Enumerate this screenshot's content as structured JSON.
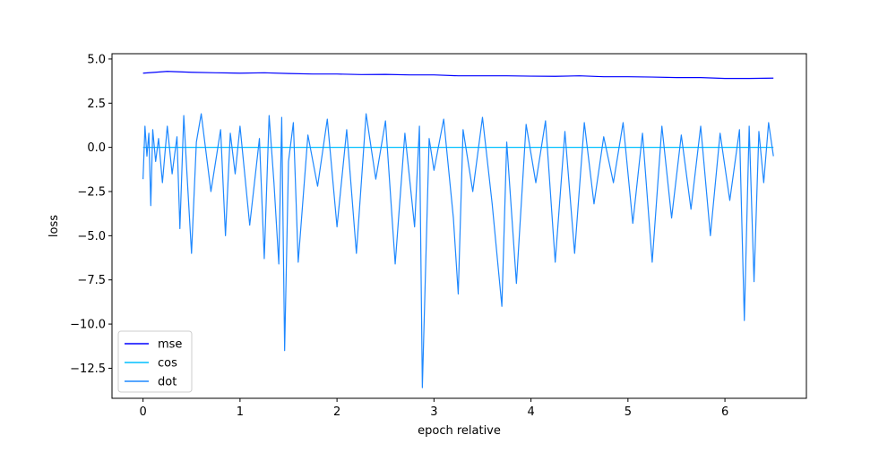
{
  "chart_data": {
    "type": "line",
    "title": "",
    "xlabel": "epoch relative",
    "ylabel": "loss",
    "xlim": [
      -0.32,
      6.84
    ],
    "ylim": [
      -14.2,
      5.3
    ],
    "xticks": [
      0,
      1,
      2,
      3,
      4,
      5,
      6
    ],
    "yticks": [
      5.0,
      2.5,
      0.0,
      -2.5,
      -5.0,
      -7.5,
      -10.0,
      -12.5
    ],
    "ytick_labels": [
      "5.0",
      "2.5",
      "0.0",
      "−2.5",
      "−5.0",
      "−7.5",
      "−10.0",
      "−12.5"
    ],
    "grid": false,
    "legend_position": "lower-left",
    "series": [
      {
        "name": "mse",
        "color": "#0000ff",
        "x": [
          0.0,
          0.25,
          0.5,
          0.75,
          1.0,
          1.25,
          1.5,
          1.75,
          2.0,
          2.25,
          2.5,
          2.75,
          3.0,
          3.25,
          3.5,
          3.75,
          4.0,
          4.25,
          4.5,
          4.75,
          5.0,
          5.25,
          5.5,
          5.75,
          6.0,
          6.25,
          6.5
        ],
        "values": [
          4.2,
          4.3,
          4.25,
          4.22,
          4.2,
          4.22,
          4.18,
          4.15,
          4.15,
          4.12,
          4.13,
          4.1,
          4.1,
          4.05,
          4.05,
          4.05,
          4.03,
          4.02,
          4.05,
          4.0,
          4.0,
          3.98,
          3.95,
          3.95,
          3.9,
          3.9,
          3.92
        ]
      },
      {
        "name": "cos",
        "color": "#00bfff",
        "x": [
          0.0,
          6.5
        ],
        "values": [
          0.0,
          0.0
        ]
      },
      {
        "name": "dot",
        "color": "#1e88ff",
        "x": [
          0.0,
          0.02,
          0.04,
          0.06,
          0.08,
          0.1,
          0.13,
          0.16,
          0.2,
          0.25,
          0.3,
          0.35,
          0.38,
          0.42,
          0.45,
          0.5,
          0.55,
          0.6,
          0.7,
          0.8,
          0.85,
          0.9,
          0.95,
          1.0,
          1.1,
          1.2,
          1.25,
          1.3,
          1.35,
          1.4,
          1.43,
          1.46,
          1.5,
          1.55,
          1.6,
          1.7,
          1.8,
          1.9,
          2.0,
          2.1,
          2.2,
          2.3,
          2.4,
          2.5,
          2.6,
          2.7,
          2.8,
          2.85,
          2.88,
          2.95,
          3.0,
          3.1,
          3.2,
          3.25,
          3.3,
          3.4,
          3.5,
          3.6,
          3.7,
          3.75,
          3.85,
          3.95,
          4.05,
          4.15,
          4.25,
          4.35,
          4.45,
          4.55,
          4.65,
          4.75,
          4.85,
          4.95,
          5.05,
          5.15,
          5.25,
          5.35,
          5.45,
          5.55,
          5.65,
          5.75,
          5.85,
          5.95,
          6.05,
          6.15,
          6.2,
          6.25,
          6.3,
          6.35,
          6.4,
          6.45,
          6.5
        ],
        "values": [
          -1.8,
          1.2,
          -0.5,
          0.8,
          -3.3,
          1.0,
          -0.8,
          0.5,
          -2.0,
          1.2,
          -1.5,
          0.6,
          -4.6,
          1.8,
          -1.2,
          -6.0,
          0.3,
          1.9,
          -2.5,
          1.0,
          -5.0,
          0.8,
          -1.5,
          1.2,
          -4.4,
          0.5,
          -6.3,
          1.8,
          -2.0,
          -6.6,
          1.7,
          -11.5,
          -0.8,
          1.4,
          -6.5,
          0.7,
          -2.2,
          1.6,
          -4.5,
          1.0,
          -6.0,
          1.9,
          -1.8,
          1.5,
          -6.6,
          0.8,
          -4.5,
          1.2,
          -13.6,
          0.5,
          -1.3,
          1.6,
          -4.0,
          -8.3,
          1.0,
          -2.5,
          1.7,
          -3.2,
          -9.0,
          0.3,
          -7.7,
          1.3,
          -2.0,
          1.5,
          -6.5,
          0.9,
          -6.0,
          1.4,
          -3.2,
          0.6,
          -2.0,
          1.4,
          -4.3,
          0.8,
          -6.5,
          1.2,
          -4.0,
          0.7,
          -3.5,
          1.2,
          -5.0,
          0.8,
          -3.0,
          1.0,
          -9.8,
          1.2,
          -7.6,
          0.9,
          -2.0,
          1.4,
          -0.5
        ]
      }
    ]
  }
}
